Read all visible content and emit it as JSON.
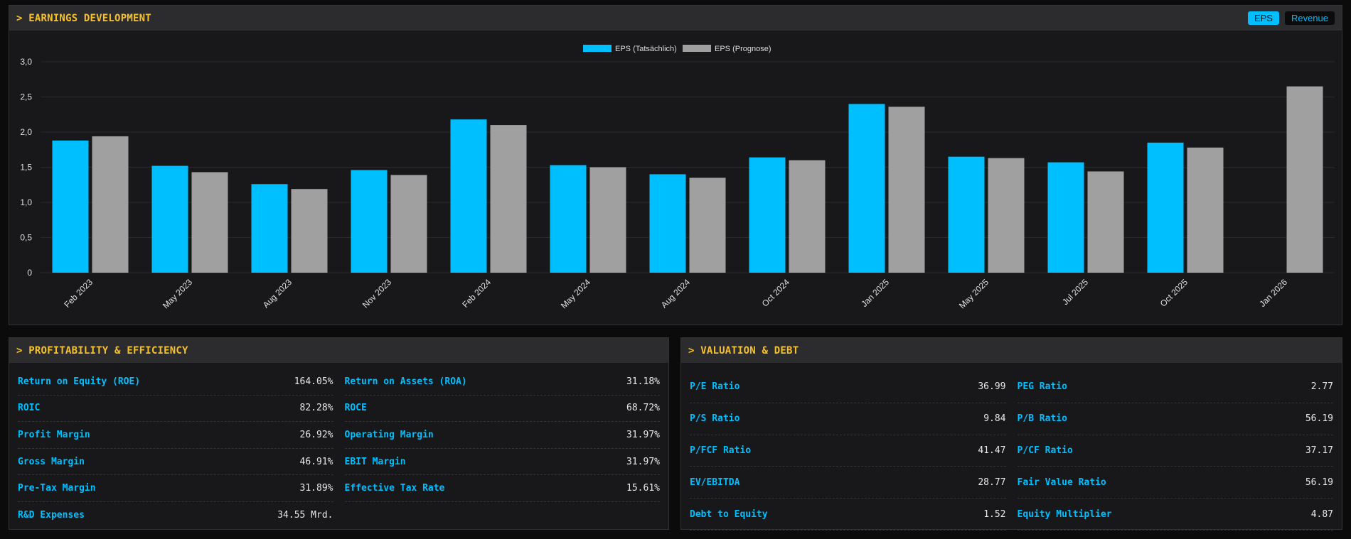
{
  "earnings": {
    "title": "> EARNINGS DEVELOPMENT",
    "toggle": {
      "eps_label": "EPS",
      "revenue_label": "Revenue",
      "active": "EPS"
    }
  },
  "chart_data": {
    "type": "bar",
    "categories": [
      "Feb 2023",
      "May 2023",
      "Aug 2023",
      "Nov 2023",
      "Feb 2024",
      "May 2024",
      "Aug 2024",
      "Oct 2024",
      "Jan 2025",
      "May 2025",
      "Jul 2025",
      "Oct 2025",
      "Jan 2026"
    ],
    "series": [
      {
        "name": "EPS (Tatsächlich)",
        "color": "#00bfff",
        "values": [
          1.88,
          1.52,
          1.26,
          1.46,
          2.18,
          1.53,
          1.4,
          1.64,
          2.4,
          1.65,
          1.57,
          1.85,
          null
        ]
      },
      {
        "name": "EPS (Prognose)",
        "color": "#a0a0a0",
        "values": [
          1.94,
          1.43,
          1.19,
          1.39,
          2.1,
          1.5,
          1.35,
          1.6,
          2.36,
          1.63,
          1.44,
          1.78,
          2.65
        ]
      }
    ],
    "yticks": [
      "0",
      "0,5",
      "1,0",
      "1,5",
      "2,0",
      "2,5",
      "3,0"
    ],
    "ylim": [
      0,
      3.0
    ],
    "grid": true,
    "legend": "top-center",
    "xlabel": "",
    "ylabel": ""
  },
  "profitability": {
    "title": "> PROFITABILITY & EFFICIENCY",
    "rows": [
      {
        "label": "Return on Equity (ROE)",
        "value": "164.05%"
      },
      {
        "label": "Return on Assets (ROA)",
        "value": "31.18%"
      },
      {
        "label": "ROIC",
        "value": "82.28%"
      },
      {
        "label": "ROCE",
        "value": "68.72%"
      },
      {
        "label": "Profit Margin",
        "value": "26.92%"
      },
      {
        "label": "Operating Margin",
        "value": "31.97%"
      },
      {
        "label": "Gross Margin",
        "value": "46.91%"
      },
      {
        "label": "EBIT Margin",
        "value": "31.97%"
      },
      {
        "label": "Pre-Tax Margin",
        "value": "31.89%"
      },
      {
        "label": "Effective Tax Rate",
        "value": "15.61%"
      },
      {
        "label": "R&D Expenses",
        "value": "34.55 Mrd."
      }
    ]
  },
  "valuation": {
    "title": "> VALUATION & DEBT",
    "rows": [
      {
        "label": "P/E Ratio",
        "value": "36.99"
      },
      {
        "label": "PEG Ratio",
        "value": "2.77"
      },
      {
        "label": "P/S Ratio",
        "value": "9.84"
      },
      {
        "label": "P/B Ratio",
        "value": "56.19"
      },
      {
        "label": "P/FCF Ratio",
        "value": "41.47"
      },
      {
        "label": "P/CF Ratio",
        "value": "37.17"
      },
      {
        "label": "EV/EBITDA",
        "value": "28.77"
      },
      {
        "label": "Fair Value Ratio",
        "value": "56.19"
      },
      {
        "label": "Debt to Equity",
        "value": "1.52"
      },
      {
        "label": "Equity Multiplier",
        "value": "4.87"
      }
    ]
  }
}
